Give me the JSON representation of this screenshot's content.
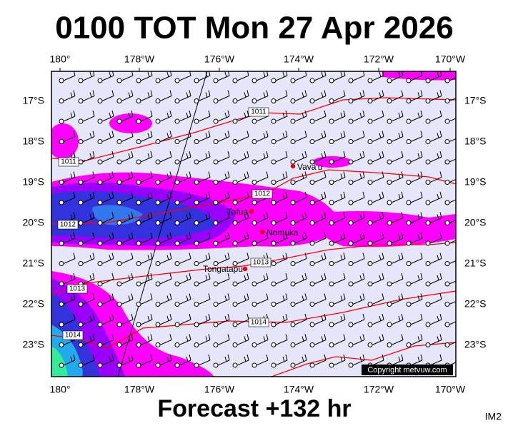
{
  "header": {
    "title": "0100 TOT Mon 27 Apr 2026"
  },
  "map": {
    "longitude_labels": [
      "180°",
      "178°W",
      "176°W",
      "174°W",
      "172°W",
      "170°W"
    ],
    "latitude_labels": [
      "17°S",
      "18°S",
      "19°S",
      "20°S",
      "21°S",
      "22°S",
      "23°S"
    ],
    "places": [
      "Vava'u",
      "Tofua",
      "Nomuka",
      "Tongatapu"
    ],
    "isobar_labels": [
      "1011",
      "1011",
      "1012",
      "1012",
      "1013",
      "1013",
      "1014",
      "1014"
    ],
    "copyright": "Copyright metvuw.com"
  },
  "footer": {
    "caption": "Forecast +132 hr",
    "code": "IM2"
  }
}
